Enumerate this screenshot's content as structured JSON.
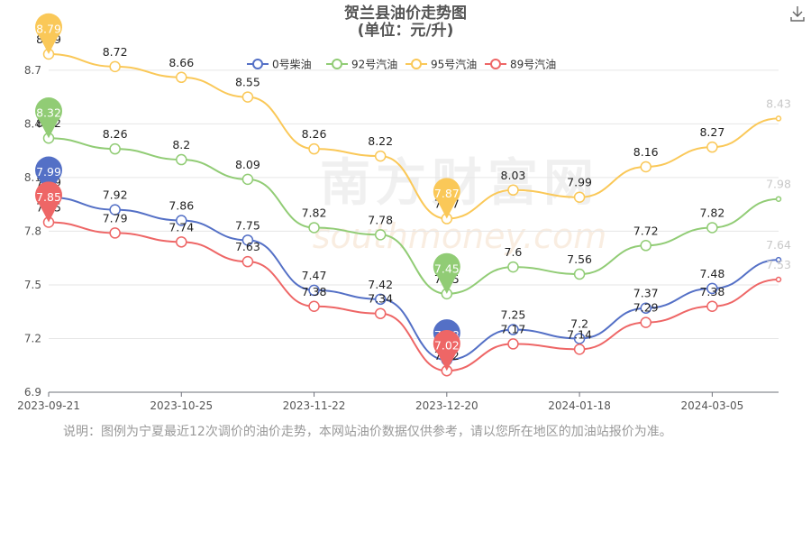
{
  "title": "贺兰县油价走势图",
  "subtitle": "(单位：元/升)",
  "note": "说明：图例为宁夏最近12次调价的油价走势，本网站油价数据仅供参考，请以您所在地区的加油站报价为准。",
  "watermark": "南方财富网",
  "watermark_sub": "southmoney.com",
  "toolbar": {
    "download_icon": "download-icon"
  },
  "chart_data": {
    "type": "line",
    "smooth": true,
    "ylim": [
      6.9,
      8.8
    ],
    "yticks": [
      "6.9",
      "7.2",
      "7.5",
      "7.8",
      "8.1",
      "8.4",
      "8.7"
    ],
    "ytick_values": [
      6.9,
      7.2,
      7.5,
      7.8,
      8.1,
      8.4,
      8.7
    ],
    "xticks": [
      "2023-09-21",
      "2023-10-25",
      "2023-11-22",
      "2023-12-20",
      "2024-01-18",
      "2024-03-05"
    ],
    "xtick_index": [
      0,
      2,
      4,
      6,
      8,
      10
    ],
    "n_points": 12,
    "legend_position": "top-center",
    "series": [
      {
        "name": "0号柴油",
        "color": "#5470c6",
        "values": [
          7.99,
          7.92,
          7.86,
          7.75,
          7.47,
          7.42,
          7.08,
          7.25,
          7.2,
          7.37,
          7.48,
          7.64
        ],
        "labels": [
          "7.99",
          "7.92",
          "7.86",
          "7.75",
          "7.47",
          "7.42",
          "7.08",
          "7.25",
          "7.2",
          "7.37",
          "7.48",
          "7.64"
        ],
        "max_index": 0,
        "min_index": 6
      },
      {
        "name": "92号汽油",
        "color": "#91cc75",
        "values": [
          8.32,
          8.26,
          8.2,
          8.09,
          7.82,
          7.78,
          7.45,
          7.6,
          7.56,
          7.72,
          7.82,
          7.98
        ],
        "labels": [
          "8.32",
          "8.26",
          "8.2",
          "8.09",
          "7.82",
          "7.78",
          "7.45",
          "7.6",
          "7.56",
          "7.72",
          "7.82",
          "7.98"
        ],
        "max_index": 0,
        "min_index": 6
      },
      {
        "name": "95号汽油",
        "color": "#fac858",
        "values": [
          8.79,
          8.72,
          8.66,
          8.55,
          8.26,
          8.22,
          7.87,
          8.03,
          7.99,
          8.16,
          8.27,
          8.43
        ],
        "labels": [
          "8.79",
          "8.72",
          "8.66",
          "8.55",
          "8.26",
          "8.22",
          "7.87",
          "8.03",
          "7.99",
          "8.16",
          "8.27",
          "8.43"
        ],
        "max_index": 0,
        "min_index": 6
      },
      {
        "name": "89号汽油",
        "color": "#ee6666",
        "values": [
          7.85,
          7.79,
          7.74,
          7.63,
          7.38,
          7.34,
          7.02,
          7.17,
          7.14,
          7.29,
          7.38,
          7.53
        ],
        "labels": [
          "7.85",
          "7.79",
          "7.74",
          "7.63",
          "7.38",
          "7.34",
          "7.02",
          "7.17",
          "7.14",
          "7.29",
          "7.38",
          "7.53"
        ],
        "max_index": 0,
        "min_index": 6
      }
    ]
  }
}
